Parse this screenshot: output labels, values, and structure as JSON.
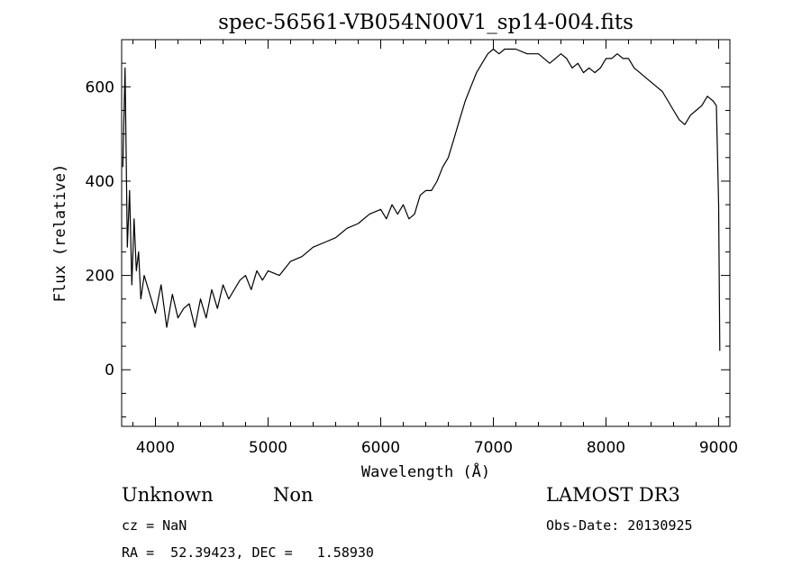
{
  "chart_data": {
    "type": "line",
    "title": "spec-56561-VB054N00V1_sp14-004.fits",
    "xlabel": "Wavelength (Å)",
    "ylabel": "Flux (relative)",
    "xlim": [
      3700,
      9100
    ],
    "ylim": [
      -120,
      700
    ],
    "xticks": [
      4000,
      5000,
      6000,
      7000,
      8000,
      9000
    ],
    "yticks": [
      0,
      200,
      400,
      600
    ],
    "series": [
      {
        "x": [
          3710,
          3730,
          3750,
          3770,
          3790,
          3810,
          3830,
          3850,
          3870,
          3900,
          3950,
          4000,
          4050,
          4100,
          4150,
          4200,
          4250,
          4300,
          4350,
          4400,
          4450,
          4500,
          4550,
          4600,
          4650,
          4700,
          4750,
          4800,
          4850,
          4900,
          4950,
          5000,
          5100,
          5200,
          5300,
          5400,
          5500,
          5600,
          5700,
          5800,
          5900,
          6000,
          6050,
          6100,
          6150,
          6200,
          6250,
          6300,
          6350,
          6400,
          6450,
          6500,
          6550,
          6600,
          6650,
          6700,
          6750,
          6800,
          6850,
          6900,
          6950,
          7000,
          7050,
          7100,
          7200,
          7300,
          7400,
          7500,
          7550,
          7600,
          7650,
          7700,
          7750,
          7800,
          7850,
          7900,
          7950,
          8000,
          8050,
          8100,
          8150,
          8200,
          8250,
          8300,
          8350,
          8400,
          8450,
          8500,
          8550,
          8600,
          8650,
          8700,
          8750,
          8800,
          8850,
          8900,
          8950,
          8980,
          9000,
          9010
        ],
        "values": [
          430,
          640,
          260,
          380,
          180,
          320,
          210,
          250,
          150,
          200,
          160,
          120,
          180,
          90,
          160,
          110,
          130,
          140,
          90,
          150,
          110,
          170,
          130,
          180,
          150,
          170,
          190,
          200,
          170,
          210,
          190,
          210,
          200,
          230,
          240,
          260,
          270,
          280,
          300,
          310,
          330,
          340,
          320,
          350,
          330,
          350,
          320,
          330,
          370,
          380,
          380,
          400,
          430,
          450,
          490,
          530,
          570,
          600,
          630,
          650,
          670,
          680,
          670,
          680,
          680,
          670,
          670,
          650,
          660,
          670,
          660,
          640,
          650,
          630,
          640,
          630,
          640,
          660,
          660,
          670,
          660,
          660,
          640,
          630,
          620,
          610,
          600,
          590,
          570,
          550,
          530,
          520,
          540,
          550,
          560,
          580,
          570,
          560,
          350,
          40
        ]
      }
    ],
    "grid": false
  },
  "info": {
    "object_type": "Unknown",
    "object_class": "Non",
    "survey": "LAMOST DR3",
    "cz": "cz = NaN",
    "obs_date": "Obs-Date: 20130925",
    "coords": "RA =  52.39423, DEC =   1.58930"
  }
}
